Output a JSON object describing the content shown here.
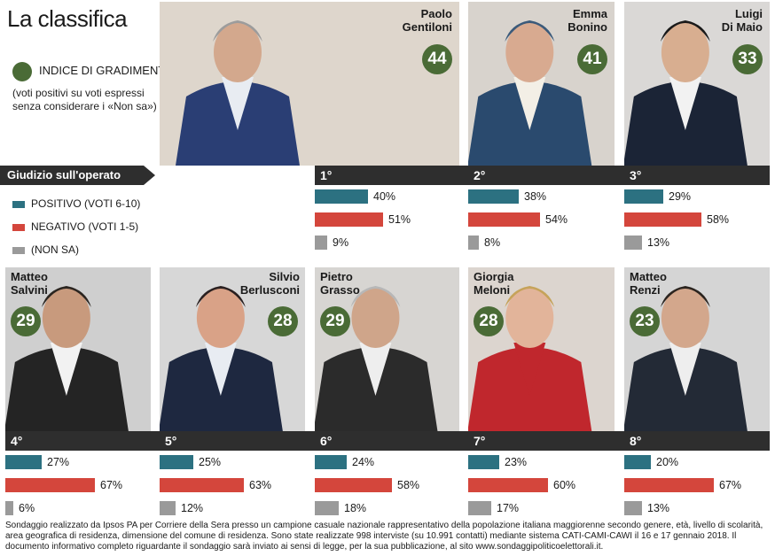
{
  "title": "La classifica",
  "legend": {
    "score_label": "INDICE DI GRADIMENTO",
    "score_note": "(voti positivi su voti espressi senza considerare i «Non sa»)",
    "giudizio": "Giudizio sull'operato",
    "positivo": "POSITIVO (VOTI 6-10)",
    "negativo": "NEGATIVO (VOTI 1-5)",
    "nonsa": "(NON SA)",
    "colors": {
      "score": "#4a6b36",
      "positivo": "#2c7181",
      "negativo": "#d4463c",
      "nonsa": "#9a9a9a"
    }
  },
  "chart_data": {
    "type": "bar",
    "categories": [
      "Paolo Gentiloni",
      "Emma Bonino",
      "Luigi Di Maio",
      "Matteo Salvini",
      "Silvio Berlusconi",
      "Pietro Grasso",
      "Giorgia Meloni",
      "Matteo Renzi"
    ],
    "series": [
      {
        "name": "POSITIVO (VOTI 6-10)",
        "values": [
          40,
          38,
          29,
          27,
          25,
          24,
          23,
          20
        ]
      },
      {
        "name": "NEGATIVO (VOTI 1-5)",
        "values": [
          51,
          54,
          58,
          67,
          63,
          58,
          60,
          67
        ]
      },
      {
        "name": "(NON SA)",
        "values": [
          9,
          8,
          13,
          6,
          12,
          18,
          17,
          13
        ]
      }
    ],
    "gradimento": [
      44,
      41,
      33,
      29,
      28,
      29,
      28,
      23
    ],
    "ylim": [
      0,
      100
    ]
  },
  "people": [
    {
      "name": "Paolo\nGentiloni",
      "rank": "1°",
      "score": "44",
      "pos": "40%",
      "neg": "51%",
      "ns": "9%"
    },
    {
      "name": "Emma\nBonino",
      "rank": "2°",
      "score": "41",
      "pos": "38%",
      "neg": "54%",
      "ns": "8%"
    },
    {
      "name": "Luigi\nDi Maio",
      "rank": "3°",
      "score": "33",
      "pos": "29%",
      "neg": "58%",
      "ns": "13%"
    },
    {
      "name": "Matteo\nSalvini",
      "rank": "4°",
      "score": "29",
      "pos": "27%",
      "neg": "67%",
      "ns": "6%"
    },
    {
      "name": "Silvio\nBerlusconi",
      "rank": "5°",
      "score": "28",
      "pos": "25%",
      "neg": "63%",
      "ns": "12%"
    },
    {
      "name": "Pietro\nGrasso",
      "rank": "6°",
      "score": "29",
      "pos": "24%",
      "neg": "58%",
      "ns": "18%"
    },
    {
      "name": "Giorgia\nMeloni",
      "rank": "7°",
      "score": "28",
      "pos": "23%",
      "neg": "60%",
      "ns": "17%"
    },
    {
      "name": "Matteo\nRenzi",
      "rank": "8°",
      "score": "23",
      "pos": "20%",
      "neg": "67%",
      "ns": "13%"
    }
  ],
  "footnote": "Sondaggio realizzato da Ipsos PA per Corriere della Sera presso un campione casuale nazionale rappresentativo della popolazione italiana maggiorenne secondo genere, età, livello di scolarità, area geografica di residenza, dimensione del comune di residenza. Sono state realizzate 998 interviste (su 10.991 contatti) mediante sistema CATI-CAMI-CAWI il 16 e 17 gennaio 2018. Il documento informativo completo riguardante il sondaggio sarà inviato ai sensi di legge, per la sua pubblicazione, al sito www.sondaggipoliticoelettorali.it."
}
